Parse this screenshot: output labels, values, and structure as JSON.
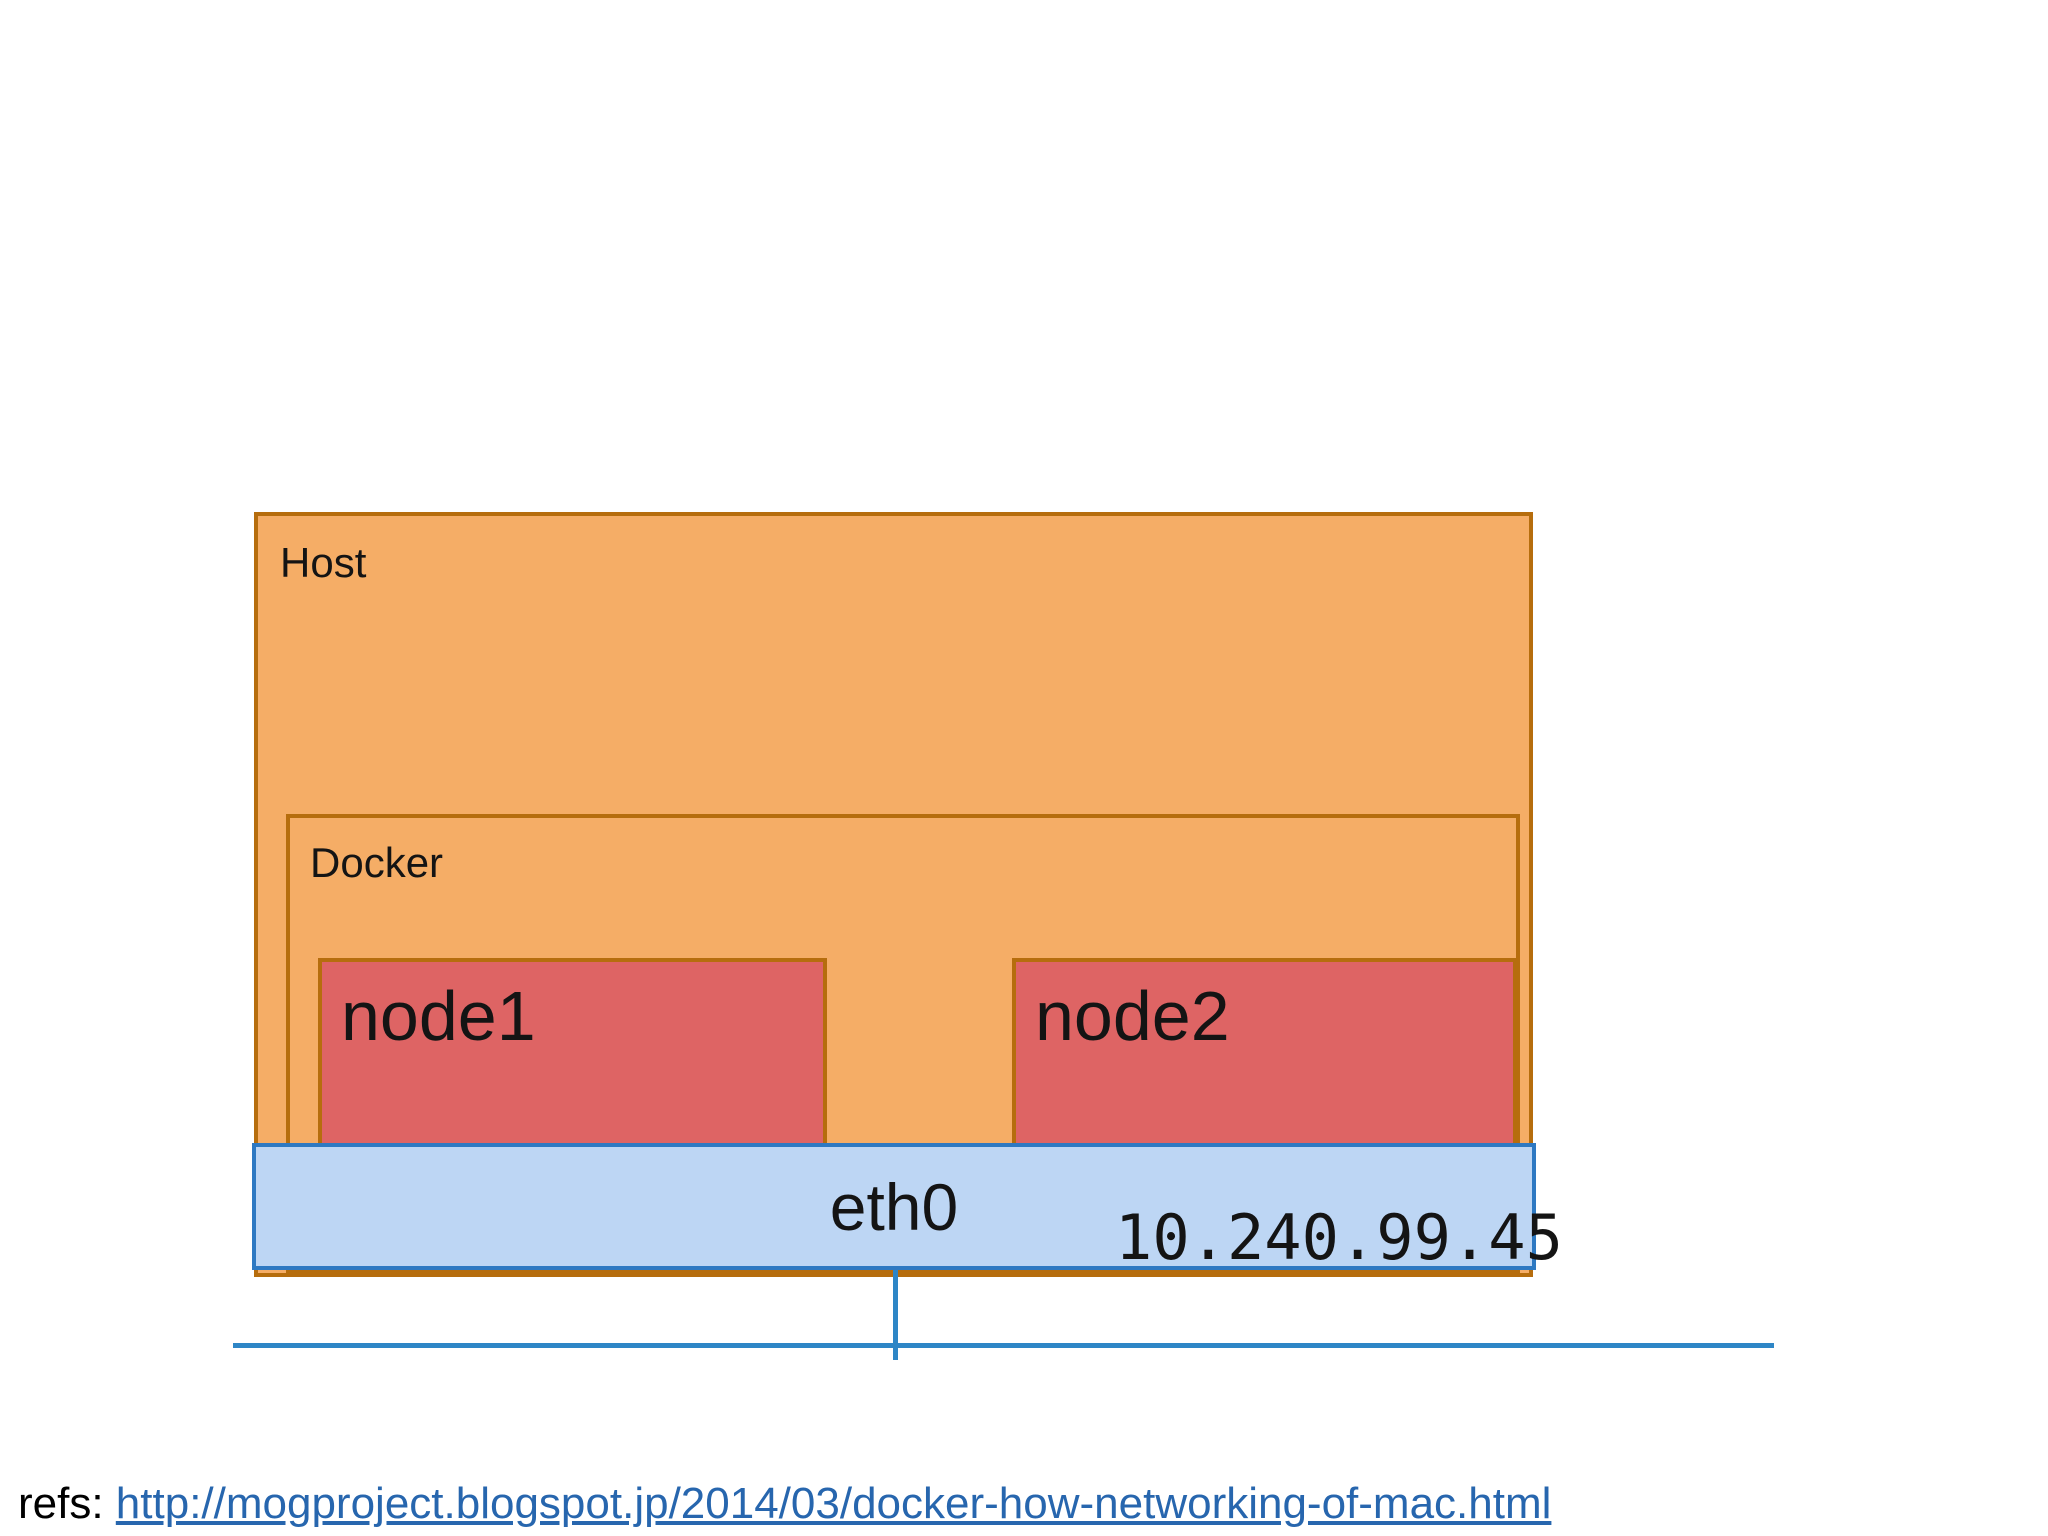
{
  "diagram": {
    "host_label": "Host",
    "docker_label": "Docker",
    "node1_label": "node1",
    "node2_label": "node2",
    "eth0_label": "eth0",
    "ip_label": "10.240.99.45"
  },
  "refs": {
    "prefix": "refs: ",
    "url": "http://mogproject.blogspot.jp/2014/03/docker-how-networking-of-mac.html"
  },
  "colors": {
    "container_fill": "#F5AD66",
    "container_border": "#B66D0D",
    "node_fill": "#DE6464",
    "eth0_fill": "#BDD6F4",
    "eth0_border": "#2E79C2",
    "network_line": "#2E86C6",
    "link": "#2766AE"
  }
}
